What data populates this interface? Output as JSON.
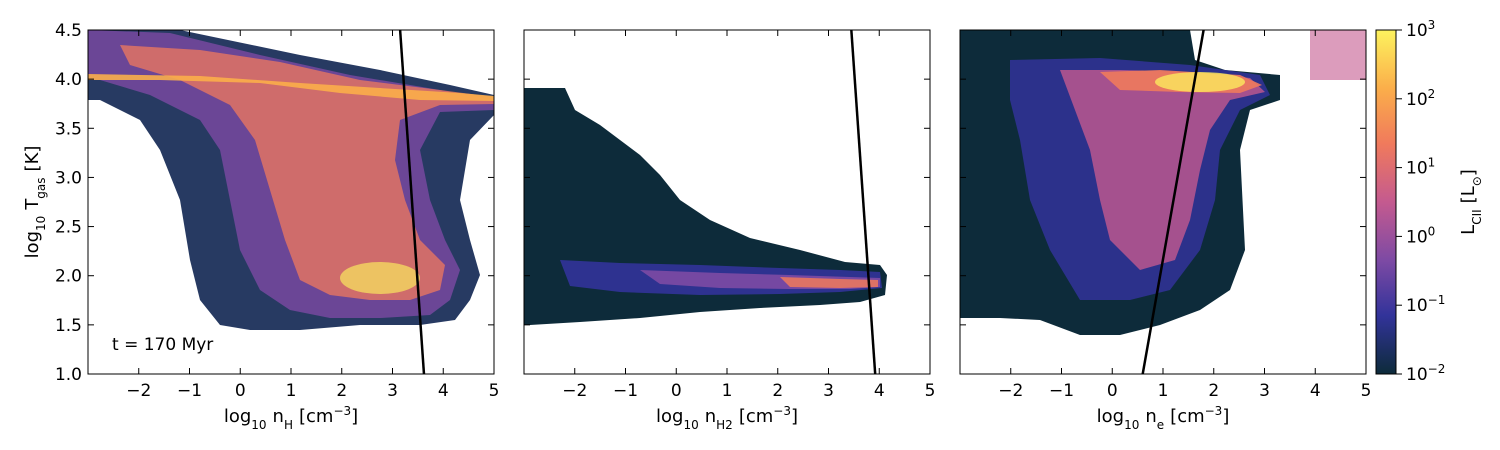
{
  "chart_data": [
    {
      "type": "heatmap",
      "xlabel": "log10 nH [cm−3]",
      "ylabel": "log10 Tgas [K]",
      "xlim": [
        -3,
        5
      ],
      "ylim": [
        1.0,
        4.5
      ],
      "xticks": [
        "−2",
        "−1",
        "0",
        "1",
        "2",
        "3",
        "4",
        "5"
      ],
      "yticks": [
        "1.0",
        "1.5",
        "2.0",
        "2.5",
        "3.0",
        "3.5",
        "4.0",
        "4.5"
      ],
      "annotation": "t = 170 Myr",
      "line": {
        "x": [
          3.15,
          3.62
        ],
        "y": [
          4.5,
          1.0
        ],
        "color": "#000000"
      }
    },
    {
      "type": "heatmap",
      "xlabel": "log10 nH2 [cm−3]",
      "xlim": [
        -3,
        5
      ],
      "ylim": [
        1.0,
        4.5
      ],
      "xticks": [
        "−2",
        "−1",
        "0",
        "1",
        "2",
        "3",
        "4",
        "5"
      ],
      "line": {
        "x": [
          3.45,
          3.92
        ],
        "y": [
          4.5,
          1.0
        ],
        "color": "#000000"
      }
    },
    {
      "type": "heatmap",
      "xlabel": "log10 ne [cm−3]",
      "xlim": [
        -3,
        5
      ],
      "ylim": [
        1.0,
        4.5
      ],
      "xticks": [
        "−2",
        "−1",
        "0",
        "1",
        "2",
        "3",
        "4",
        "5"
      ],
      "line": {
        "x": [
          0.6,
          1.8
        ],
        "y": [
          1.0,
          4.5
        ],
        "color": "#000000"
      }
    }
  ],
  "colorbar": {
    "label": "LCII [L⊙]",
    "scale": "log",
    "range": [
      -2,
      3
    ],
    "ticks": [
      {
        "base": "10",
        "exp": "−2",
        "value": -2
      },
      {
        "base": "10",
        "exp": "−1",
        "value": -1
      },
      {
        "base": "10",
        "exp": "0",
        "value": 0
      },
      {
        "base": "10",
        "exp": "1",
        "value": 1
      },
      {
        "base": "10",
        "exp": "2",
        "value": 2
      },
      {
        "base": "10",
        "exp": "3",
        "value": 3
      }
    ],
    "colors": [
      "#0d2b3a",
      "#32339a",
      "#7d4aa4",
      "#c45a8f",
      "#f07a5c",
      "#fbae4a",
      "#fdf35e"
    ]
  }
}
